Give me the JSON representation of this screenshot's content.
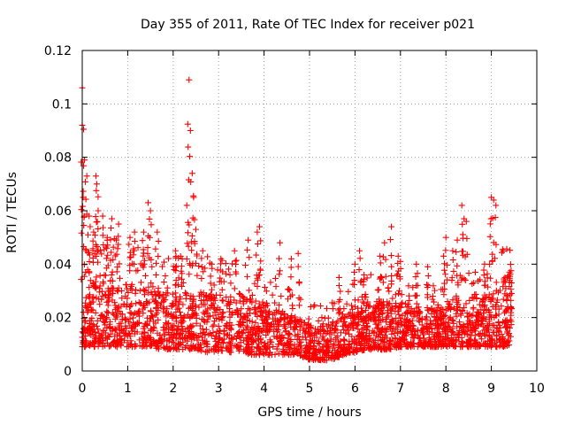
{
  "chart_data": {
    "type": "scatter",
    "title": "Day 355 of 2011, Rate Of TEC Index for receiver p021",
    "xlabel": "GPS time / hours",
    "ylabel": "ROTI / TECUs",
    "xlim": [
      0,
      10
    ],
    "ylim": [
      0,
      0.12
    ],
    "xticks": [
      "0",
      "1",
      "2",
      "3",
      "4",
      "5",
      "6",
      "7",
      "8",
      "9",
      "10"
    ],
    "yticks": [
      "0",
      "0.02",
      "0.04",
      "0.06",
      "0.08",
      "0.1",
      "0.12"
    ],
    "grid": true,
    "marker": "+",
    "color": "#ff0000",
    "series": [
      {
        "name": "ROTI",
        "envelope": {
          "x": [
            0.0,
            0.25,
            0.5,
            0.75,
            1.0,
            1.25,
            1.5,
            1.75,
            2.0,
            2.25,
            2.5,
            2.75,
            3.0,
            3.25,
            3.5,
            3.75,
            4.0,
            4.25,
            4.5,
            4.75,
            5.0,
            5.25,
            5.5,
            5.75,
            6.0,
            6.25,
            6.5,
            6.75,
            7.0,
            7.25,
            7.5,
            7.75,
            8.0,
            8.25,
            8.5,
            8.75,
            9.0,
            9.25,
            9.45
          ],
          "low": [
            0.009,
            0.009,
            0.009,
            0.009,
            0.009,
            0.009,
            0.009,
            0.008,
            0.008,
            0.008,
            0.008,
            0.007,
            0.007,
            0.007,
            0.007,
            0.006,
            0.006,
            0.006,
            0.006,
            0.006,
            0.004,
            0.004,
            0.004,
            0.006,
            0.007,
            0.008,
            0.008,
            0.008,
            0.009,
            0.009,
            0.009,
            0.009,
            0.009,
            0.009,
            0.009,
            0.009,
            0.009,
            0.009,
            0.01
          ],
          "high": [
            0.03,
            0.036,
            0.036,
            0.034,
            0.033,
            0.033,
            0.034,
            0.03,
            0.03,
            0.03,
            0.03,
            0.03,
            0.029,
            0.028,
            0.029,
            0.027,
            0.026,
            0.024,
            0.022,
            0.02,
            0.017,
            0.017,
            0.018,
            0.02,
            0.024,
            0.026,
            0.026,
            0.026,
            0.026,
            0.025,
            0.024,
            0.024,
            0.025,
            0.026,
            0.027,
            0.028,
            0.03,
            0.032,
            0.033
          ]
        },
        "peaks": [
          [
            0.0,
            0.106
          ],
          [
            0.0,
            0.092
          ],
          [
            0.02,
            0.065
          ],
          [
            0.05,
            0.079
          ],
          [
            0.1,
            0.073
          ],
          [
            0.15,
            0.058
          ],
          [
            0.25,
            0.052
          ],
          [
            0.3,
            0.073
          ],
          [
            0.32,
            0.07
          ],
          [
            0.35,
            0.06
          ],
          [
            0.45,
            0.058
          ],
          [
            0.55,
            0.05
          ],
          [
            0.65,
            0.057
          ],
          [
            0.75,
            0.049
          ],
          [
            0.8,
            0.055
          ],
          [
            1.05,
            0.05
          ],
          [
            1.15,
            0.052
          ],
          [
            1.35,
            0.052
          ],
          [
            1.45,
            0.063
          ],
          [
            1.5,
            0.06
          ],
          [
            1.65,
            0.052
          ],
          [
            2.05,
            0.045
          ],
          [
            2.2,
            0.042
          ],
          [
            2.3,
            0.062
          ],
          [
            2.35,
            0.109
          ],
          [
            2.38,
            0.09
          ],
          [
            2.42,
            0.074
          ],
          [
            2.45,
            0.065
          ],
          [
            2.5,
            0.053
          ],
          [
            2.65,
            0.045
          ],
          [
            2.85,
            0.04
          ],
          [
            3.05,
            0.042
          ],
          [
            3.35,
            0.045
          ],
          [
            3.65,
            0.049
          ],
          [
            3.85,
            0.052
          ],
          [
            3.9,
            0.054
          ],
          [
            4.35,
            0.048
          ],
          [
            4.6,
            0.042
          ],
          [
            4.75,
            0.044
          ],
          [
            5.65,
            0.035
          ],
          [
            6.0,
            0.04
          ],
          [
            6.1,
            0.045
          ],
          [
            6.2,
            0.036
          ],
          [
            6.55,
            0.043
          ],
          [
            6.65,
            0.048
          ],
          [
            6.8,
            0.054
          ],
          [
            6.95,
            0.043
          ],
          [
            7.0,
            0.041
          ],
          [
            7.35,
            0.04
          ],
          [
            7.6,
            0.039
          ],
          [
            7.95,
            0.043
          ],
          [
            8.0,
            0.05
          ],
          [
            8.15,
            0.045
          ],
          [
            8.25,
            0.049
          ],
          [
            8.35,
            0.062
          ],
          [
            8.4,
            0.057
          ],
          [
            8.45,
            0.056
          ],
          [
            8.85,
            0.04
          ],
          [
            9.0,
            0.065
          ],
          [
            9.05,
            0.064
          ],
          [
            9.1,
            0.062
          ],
          [
            9.3,
            0.035
          ],
          [
            9.4,
            0.037
          ]
        ]
      }
    ]
  }
}
